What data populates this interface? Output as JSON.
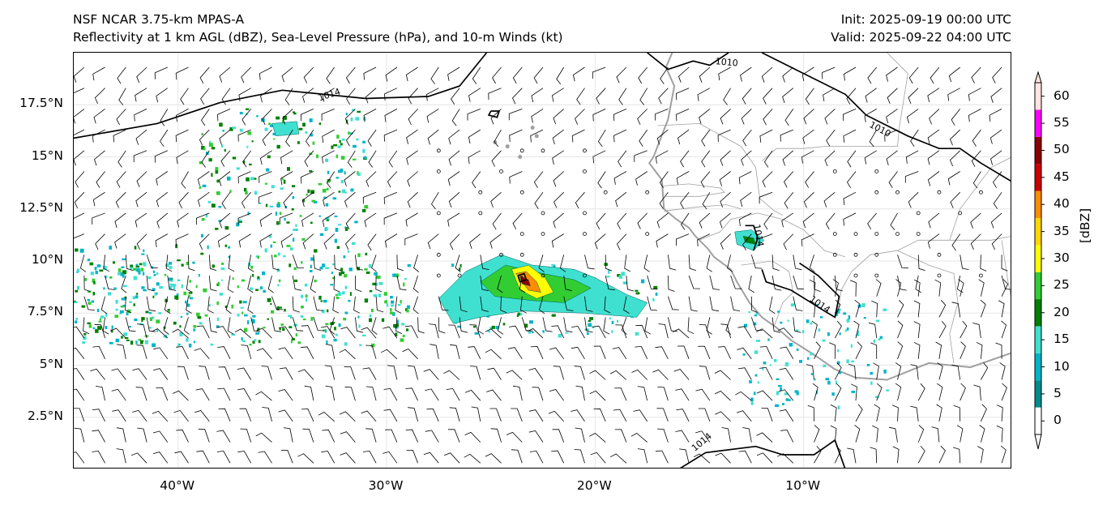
{
  "header": {
    "title_line1": "NSF NCAR 3.75-km MPAS-A",
    "title_line2": "Reflectivity at 1 km AGL (dBZ), Sea-Level Pressure (hPa), and 10-m Winds (kt)",
    "init": "Init: 2025-09-19 00:00 UTC",
    "valid": "Valid: 2025-09-22 04:00 UTC"
  },
  "map": {
    "lon_range": [
      -45,
      0
    ],
    "lat_range": [
      0,
      20
    ],
    "lat_ticks": [
      {
        "value": 17.5,
        "label": "17.5°N"
      },
      {
        "value": 15,
        "label": "15°N"
      },
      {
        "value": 12.5,
        "label": "12.5°N"
      },
      {
        "value": 10,
        "label": "10°N"
      },
      {
        "value": 7.5,
        "label": "7.5°N"
      },
      {
        "value": 5,
        "label": "5°N"
      },
      {
        "value": 2.5,
        "label": "2.5°N"
      }
    ],
    "lon_ticks": [
      {
        "value": -40,
        "label": "40°W"
      },
      {
        "value": -30,
        "label": "30°W"
      },
      {
        "value": -20,
        "label": "20°W"
      },
      {
        "value": -10,
        "label": "10°W"
      }
    ],
    "contour_labels": [
      "1014",
      "1010",
      "1010",
      "1014",
      "1014",
      "1014"
    ],
    "colors": {
      "coast": "#a0a0a0",
      "isobar": "#000000",
      "barb": "#000000"
    }
  },
  "colorbar": {
    "label": "[dBZ]",
    "ticks": [
      "0",
      "5",
      "10",
      "15",
      "20",
      "25",
      "30",
      "35",
      "40",
      "45",
      "50",
      "55",
      "60"
    ],
    "colors": [
      "#ffffff",
      "#008b8b",
      "#00b4c8",
      "#40e0d0",
      "#008000",
      "#32cd32",
      "#ffff00",
      "#ffd700",
      "#ff8c00",
      "#cc0000",
      "#8b0000",
      "#ff00ff",
      "#ffe4e1"
    ]
  }
}
